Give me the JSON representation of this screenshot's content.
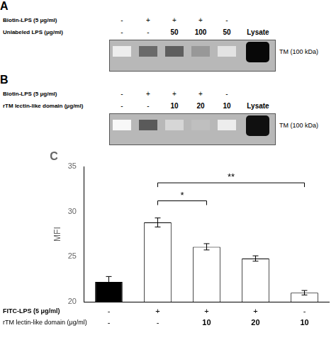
{
  "chart_data": [
    {
      "type": "gel",
      "title": "A",
      "row_labels": [
        "Biotin-LPS (5 μg/ml)",
        "Unlabeled LPS (μg/ml)"
      ],
      "rows": [
        [
          "-",
          "+",
          "+",
          "+",
          "-",
          null
        ],
        [
          "-",
          "-",
          "50",
          "100",
          "50",
          "Lysate"
        ]
      ],
      "band_label": "TM (100 kDa)",
      "band_intensity": [
        0.08,
        0.65,
        0.7,
        0.45,
        0.12
      ],
      "color": "#b8b8b8",
      "lysate_color": "#080808"
    },
    {
      "type": "gel",
      "title": "B",
      "row_labels": [
        "Biotin-LPS (5 μg/ml)",
        "rTM lectin-like domain (μg/ml)"
      ],
      "rows": [
        [
          "-",
          "+",
          "+",
          "+",
          "-",
          null
        ],
        [
          "-",
          "-",
          "10",
          "20",
          "10",
          "Lysate"
        ]
      ],
      "band_label": "TM (100 kDa)",
      "band_intensity": [
        0.03,
        0.72,
        0.18,
        0.28,
        0.08
      ],
      "color": "#b8b8b8",
      "lysate_color": "#101010"
    },
    {
      "type": "bar",
      "title": "C",
      "ylabel": "MFI",
      "categories": [
        [
          "-",
          "-"
        ],
        [
          "+",
          "-"
        ],
        [
          "+",
          "10"
        ],
        [
          "+",
          "20"
        ],
        [
          "-",
          "10"
        ]
      ],
      "category_rows": [
        "FITC-LPS (5 μg/ml)",
        "rTM lectin-like domain (μg/ml)"
      ],
      "values": [
        22.2,
        28.8,
        26.1,
        24.8,
        21.0
      ],
      "errors": [
        0.6,
        0.5,
        0.35,
        0.3,
        0.25
      ],
      "colors": [
        "#000000",
        "#ffffff",
        "#ffffff",
        "#ffffff",
        "#ffffff"
      ],
      "ylim": [
        20,
        35
      ],
      "yticks": [
        20,
        25,
        30,
        35
      ],
      "grid": false,
      "annotations": [
        {
          "type": "bracket",
          "from": 1,
          "to": 2,
          "y": 31.2,
          "label": "*"
        },
        {
          "type": "bracket",
          "from": 1,
          "to": 4,
          "y": 33.2,
          "label": "**"
        }
      ]
    }
  ]
}
